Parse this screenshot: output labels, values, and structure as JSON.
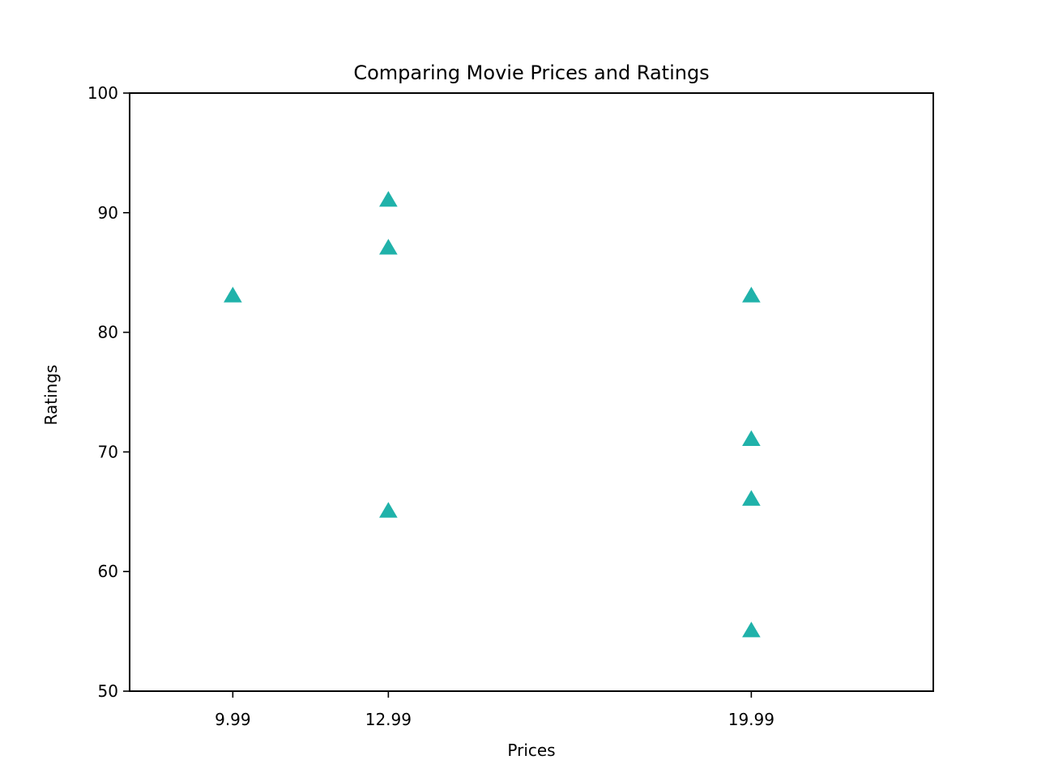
{
  "chart_data": {
    "type": "scatter",
    "title": "Comparing Movie Prices and Ratings",
    "xlabel": "Prices",
    "ylabel": "Ratings",
    "xlim": [
      8.0,
      23.5
    ],
    "ylim": [
      50,
      100
    ],
    "xticks": [
      9.99,
      12.99,
      19.99
    ],
    "xtick_labels": [
      "9.99",
      "12.99",
      "19.99"
    ],
    "yticks": [
      50,
      60,
      70,
      80,
      90,
      100
    ],
    "ytick_labels": [
      "50",
      "60",
      "70",
      "80",
      "90",
      "100"
    ],
    "marker": "triangle-up",
    "color": "#20b2aa",
    "grid": false,
    "legend": "none",
    "series": [
      {
        "points": [
          {
            "x": 9.99,
            "y": 83
          },
          {
            "x": 12.99,
            "y": 91
          },
          {
            "x": 12.99,
            "y": 87
          },
          {
            "x": 12.99,
            "y": 65
          },
          {
            "x": 19.99,
            "y": 83
          },
          {
            "x": 19.99,
            "y": 71
          },
          {
            "x": 19.99,
            "y": 66
          },
          {
            "x": 19.99,
            "y": 55
          }
        ]
      }
    ]
  }
}
